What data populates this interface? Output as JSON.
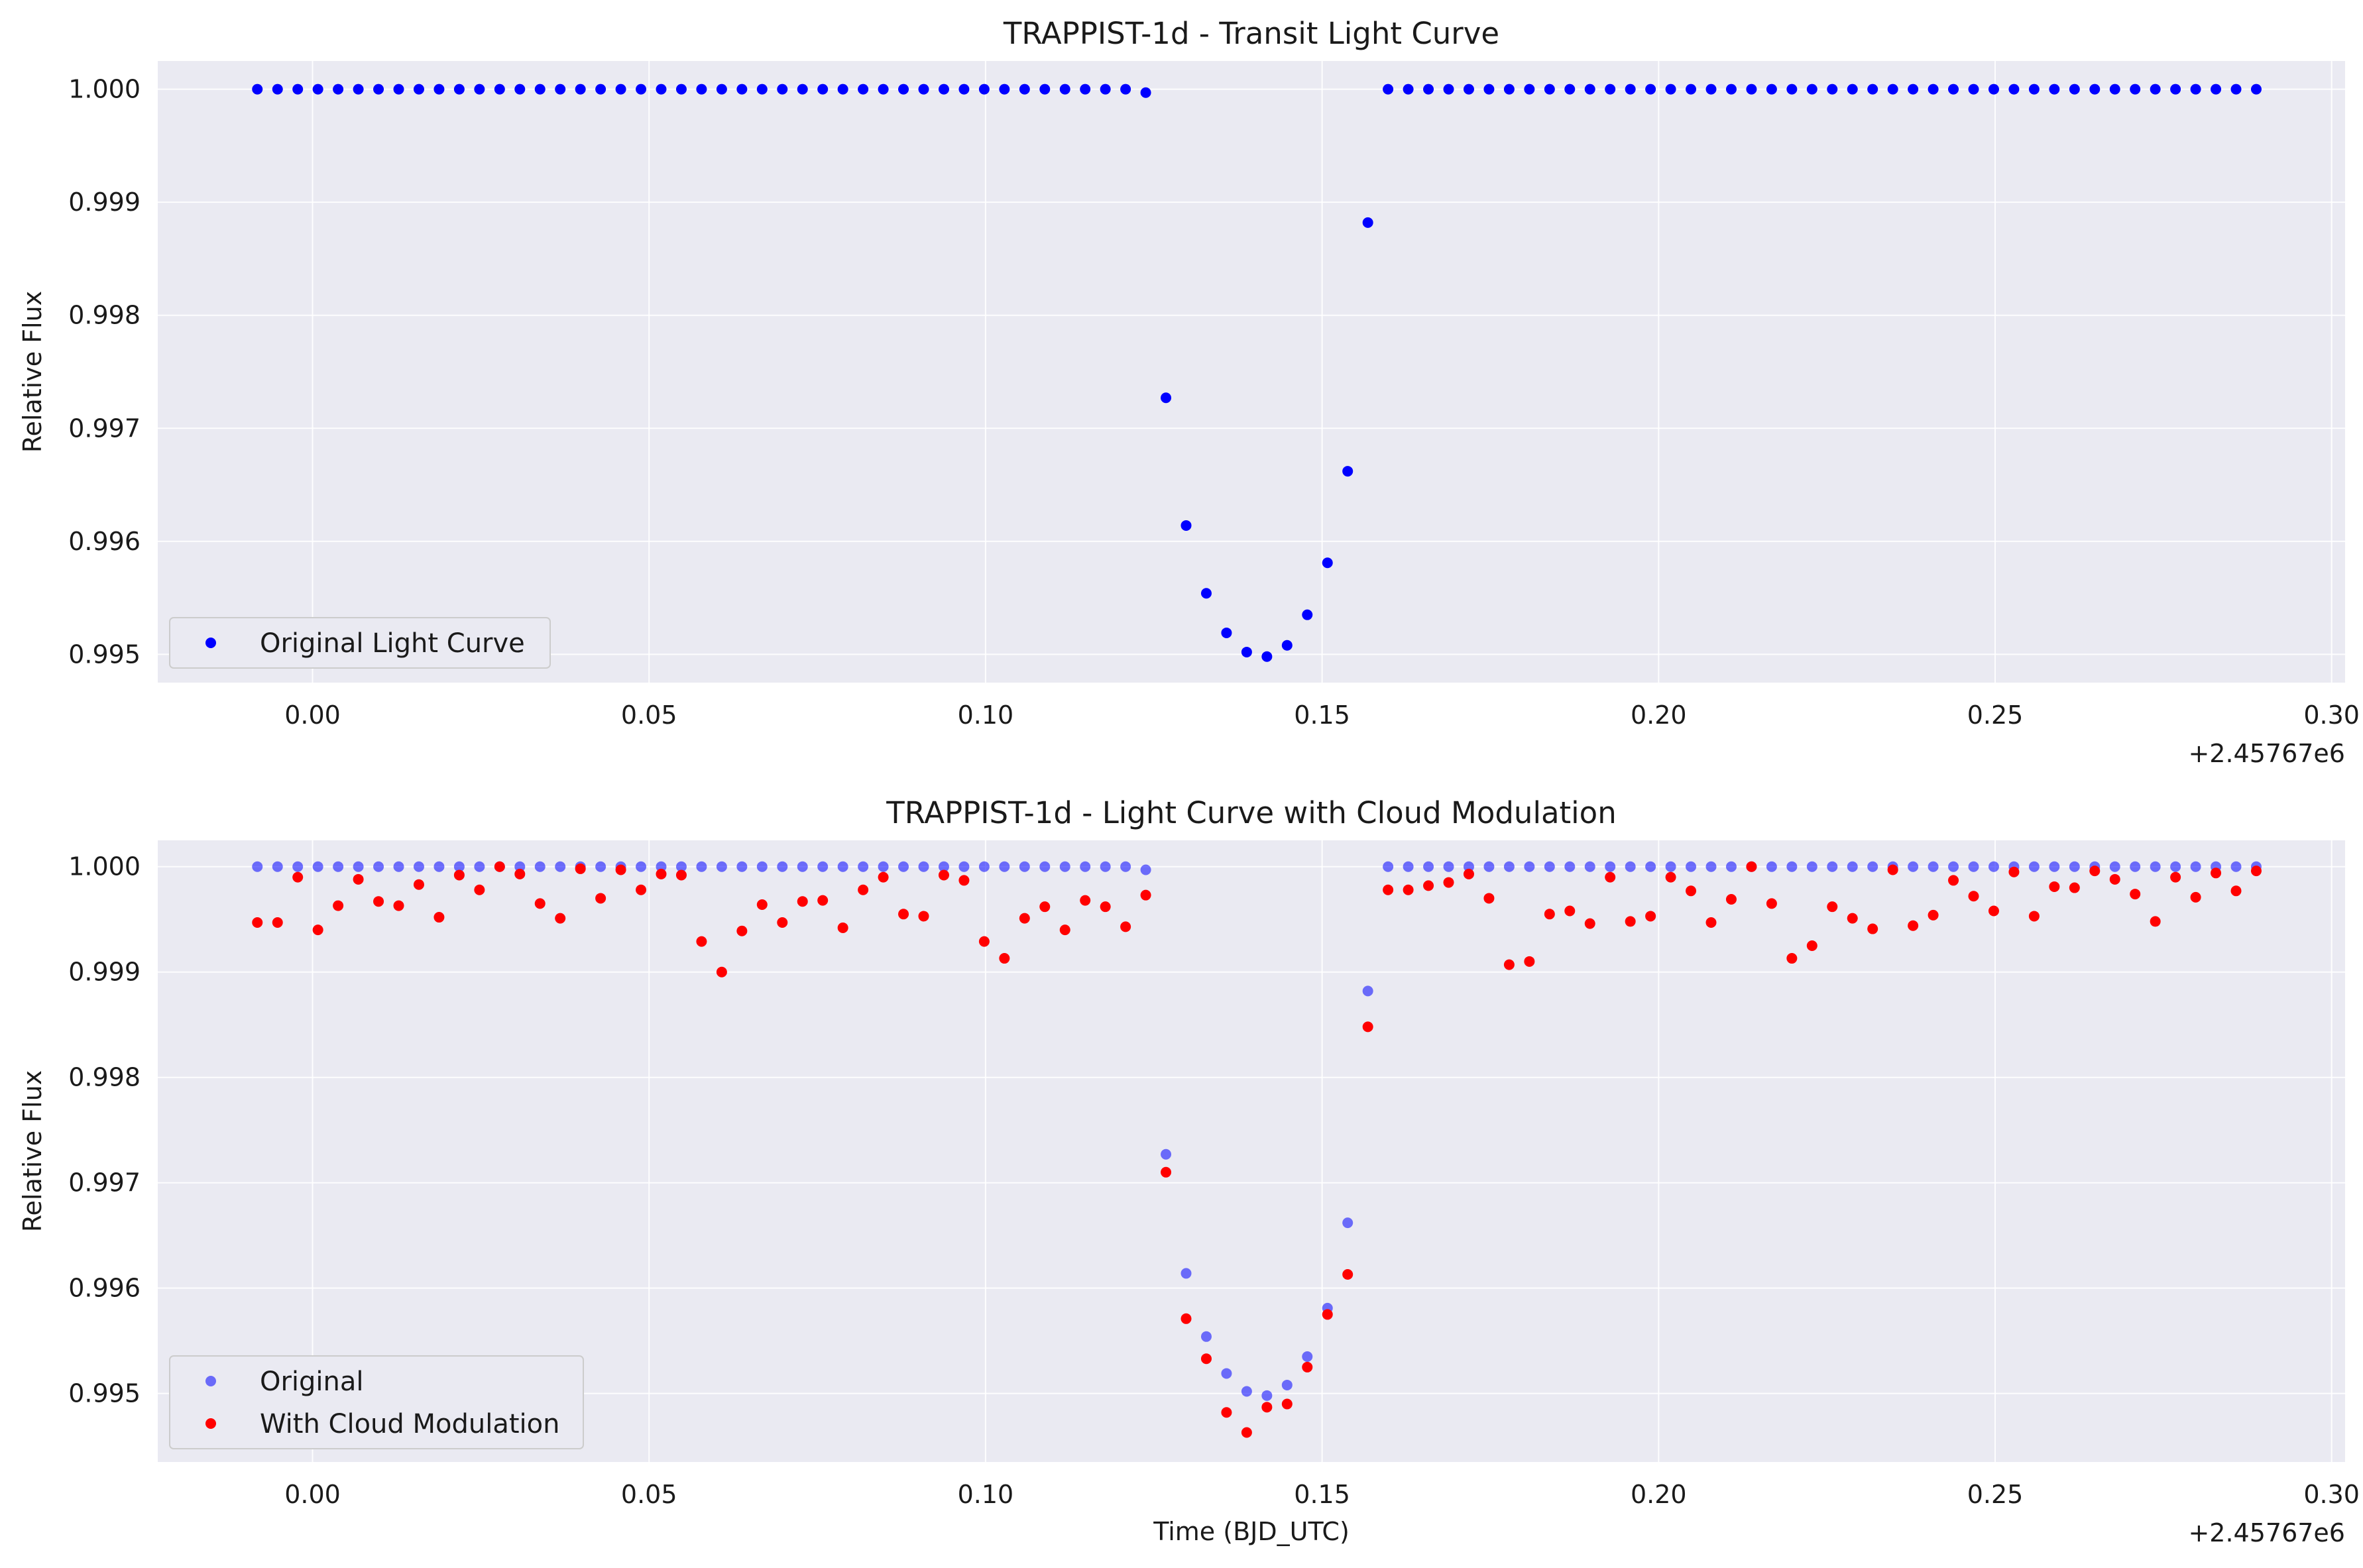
{
  "chart_data": [
    {
      "type": "scatter",
      "title": "TRAPPIST-1d - Transit Light Curve",
      "xlabel": "",
      "ylabel": "Relative Flux",
      "x_offset_label": "+2.45767e6",
      "xlim": [
        -0.023,
        0.302
      ],
      "ylim": [
        0.99475,
        1.00025
      ],
      "xticks": [
        0.0,
        0.05,
        0.1,
        0.15,
        0.2,
        0.25,
        0.3
      ],
      "xtick_labels": [
        "0.00",
        "0.05",
        "0.10",
        "0.15",
        "0.20",
        "0.25",
        "0.30"
      ],
      "yticks": [
        0.995,
        0.996,
        0.997,
        0.998,
        0.999,
        1.0
      ],
      "ytick_labels": [
        "0.995",
        "0.996",
        "0.997",
        "0.998",
        "0.999",
        "1.000"
      ],
      "grid": true,
      "legend_position": "lower-left",
      "x": [
        -0.0082,
        -0.0052,
        -0.0022,
        0.0008,
        0.0038,
        0.0068,
        0.0098,
        0.0128,
        0.0158,
        0.0188,
        0.0218,
        0.0248,
        0.0278,
        0.0308,
        0.0338,
        0.0368,
        0.0398,
        0.0428,
        0.0458,
        0.0488,
        0.0518,
        0.0548,
        0.0578,
        0.0608,
        0.0638,
        0.0668,
        0.0698,
        0.0728,
        0.0758,
        0.0788,
        0.0818,
        0.0848,
        0.0878,
        0.0908,
        0.0938,
        0.0968,
        0.0998,
        0.1028,
        0.1058,
        0.1088,
        0.1118,
        0.1148,
        0.1178,
        0.1208,
        0.1238,
        0.1268,
        0.1298,
        0.1328,
        0.1358,
        0.1388,
        0.1418,
        0.1448,
        0.1478,
        0.1508,
        0.1538,
        0.1568,
        0.1598,
        0.1628,
        0.1658,
        0.1688,
        0.1718,
        0.1748,
        0.1778,
        0.1808,
        0.1838,
        0.1868,
        0.1898,
        0.1928,
        0.1958,
        0.1988,
        0.2018,
        0.2048,
        0.2078,
        0.2108,
        0.2138,
        0.2168,
        0.2198,
        0.2228,
        0.2258,
        0.2288,
        0.2318,
        0.2348,
        0.2378,
        0.2408,
        0.2438,
        0.2468,
        0.2498,
        0.2528,
        0.2558,
        0.2588,
        0.2618,
        0.2648,
        0.2678,
        0.2708,
        0.2738,
        0.2768,
        0.2798,
        0.2828,
        0.2858,
        0.2888
      ],
      "series": [
        {
          "name": "Original Light Curve",
          "color": "#0000ff",
          "y": [
            1.0,
            1.0,
            1.0,
            1.0,
            1.0,
            1.0,
            1.0,
            1.0,
            1.0,
            1.0,
            1.0,
            1.0,
            1.0,
            1.0,
            1.0,
            1.0,
            1.0,
            1.0,
            1.0,
            1.0,
            1.0,
            1.0,
            1.0,
            1.0,
            1.0,
            1.0,
            1.0,
            1.0,
            1.0,
            1.0,
            1.0,
            1.0,
            1.0,
            1.0,
            1.0,
            1.0,
            1.0,
            1.0,
            1.0,
            1.0,
            1.0,
            1.0,
            1.0,
            1.0,
            0.99997,
            0.99727,
            0.99614,
            0.99554,
            0.99519,
            0.99502,
            0.99498,
            0.99508,
            0.99535,
            0.99581,
            0.99662,
            0.99882,
            1.0,
            1.0,
            1.0,
            1.0,
            1.0,
            1.0,
            1.0,
            1.0,
            1.0,
            1.0,
            1.0,
            1.0,
            1.0,
            1.0,
            1.0,
            1.0,
            1.0,
            1.0,
            1.0,
            1.0,
            1.0,
            1.0,
            1.0,
            1.0,
            1.0,
            1.0,
            1.0,
            1.0,
            1.0,
            1.0,
            1.0,
            1.0,
            1.0,
            1.0,
            1.0,
            1.0,
            1.0,
            1.0,
            1.0,
            1.0,
            1.0,
            1.0,
            1.0,
            1.0
          ]
        }
      ]
    },
    {
      "type": "scatter",
      "title": "TRAPPIST-1d - Light Curve with Cloud Modulation",
      "xlabel": "Time (BJD_UTC)",
      "ylabel": "Relative Flux",
      "x_offset_label": "+2.45767e6",
      "xlim": [
        -0.023,
        0.302
      ],
      "ylim": [
        0.99435,
        1.00025
      ],
      "xticks": [
        0.0,
        0.05,
        0.1,
        0.15,
        0.2,
        0.25,
        0.3
      ],
      "xtick_labels": [
        "0.00",
        "0.05",
        "0.10",
        "0.15",
        "0.20",
        "0.25",
        "0.30"
      ],
      "yticks": [
        0.995,
        0.996,
        0.997,
        0.998,
        0.999,
        1.0
      ],
      "ytick_labels": [
        "0.995",
        "0.996",
        "0.997",
        "0.998",
        "0.999",
        "1.000"
      ],
      "grid": true,
      "legend_position": "lower-left",
      "x": [
        -0.0082,
        -0.0052,
        -0.0022,
        0.0008,
        0.0038,
        0.0068,
        0.0098,
        0.0128,
        0.0158,
        0.0188,
        0.0218,
        0.0248,
        0.0278,
        0.0308,
        0.0338,
        0.0368,
        0.0398,
        0.0428,
        0.0458,
        0.0488,
        0.0518,
        0.0548,
        0.0578,
        0.0608,
        0.0638,
        0.0668,
        0.0698,
        0.0728,
        0.0758,
        0.0788,
        0.0818,
        0.0848,
        0.0878,
        0.0908,
        0.0938,
        0.0968,
        0.0998,
        0.1028,
        0.1058,
        0.1088,
        0.1118,
        0.1148,
        0.1178,
        0.1208,
        0.1238,
        0.1268,
        0.1298,
        0.1328,
        0.1358,
        0.1388,
        0.1418,
        0.1448,
        0.1478,
        0.1508,
        0.1538,
        0.1568,
        0.1598,
        0.1628,
        0.1658,
        0.1688,
        0.1718,
        0.1748,
        0.1778,
        0.1808,
        0.1838,
        0.1868,
        0.1898,
        0.1928,
        0.1958,
        0.1988,
        0.2018,
        0.2048,
        0.2078,
        0.2108,
        0.2138,
        0.2168,
        0.2198,
        0.2228,
        0.2258,
        0.2288,
        0.2318,
        0.2348,
        0.2378,
        0.2408,
        0.2438,
        0.2468,
        0.2498,
        0.2528,
        0.2558,
        0.2588,
        0.2618,
        0.2648,
        0.2678,
        0.2708,
        0.2738,
        0.2768,
        0.2798,
        0.2828,
        0.2858,
        0.2888
      ],
      "series": [
        {
          "name": "Original",
          "color": "#0000ff",
          "alpha": 0.55,
          "y": [
            1.0,
            1.0,
            1.0,
            1.0,
            1.0,
            1.0,
            1.0,
            1.0,
            1.0,
            1.0,
            1.0,
            1.0,
            1.0,
            1.0,
            1.0,
            1.0,
            1.0,
            1.0,
            1.0,
            1.0,
            1.0,
            1.0,
            1.0,
            1.0,
            1.0,
            1.0,
            1.0,
            1.0,
            1.0,
            1.0,
            1.0,
            1.0,
            1.0,
            1.0,
            1.0,
            1.0,
            1.0,
            1.0,
            1.0,
            1.0,
            1.0,
            1.0,
            1.0,
            1.0,
            0.99997,
            0.99727,
            0.99614,
            0.99554,
            0.99519,
            0.99502,
            0.99498,
            0.99508,
            0.99535,
            0.99581,
            0.99662,
            0.99882,
            1.0,
            1.0,
            1.0,
            1.0,
            1.0,
            1.0,
            1.0,
            1.0,
            1.0,
            1.0,
            1.0,
            1.0,
            1.0,
            1.0,
            1.0,
            1.0,
            1.0,
            1.0,
            1.0,
            1.0,
            1.0,
            1.0,
            1.0,
            1.0,
            1.0,
            1.0,
            1.0,
            1.0,
            1.0,
            1.0,
            1.0,
            1.0,
            1.0,
            1.0,
            1.0,
            1.0,
            1.0,
            1.0,
            1.0,
            1.0,
            1.0,
            1.0,
            1.0,
            1.0
          ]
        },
        {
          "name": "With Cloud Modulation",
          "color": "#ff0000",
          "y": [
            0.99947,
            0.99947,
            0.9999,
            0.9994,
            0.99963,
            0.99988,
            0.99967,
            0.99963,
            0.99983,
            0.99952,
            0.99992,
            0.99978,
            1.0,
            0.99993,
            0.99965,
            0.99951,
            0.99998,
            0.9997,
            0.99997,
            0.99978,
            0.99993,
            0.99992,
            0.99929,
            0.999,
            0.99939,
            0.99964,
            0.99947,
            0.99967,
            0.99968,
            0.99942,
            0.99978,
            0.9999,
            0.99955,
            0.99953,
            0.99992,
            0.99987,
            0.99929,
            0.99913,
            0.99951,
            0.99962,
            0.9994,
            0.99968,
            0.99962,
            0.99943,
            0.99973,
            0.9971,
            0.99571,
            0.99533,
            0.99482,
            0.99463,
            0.99487,
            0.9949,
            0.99525,
            0.99575,
            0.99613,
            0.99848,
            0.99978,
            0.99978,
            0.99982,
            0.99985,
            0.99993,
            0.9997,
            0.99907,
            0.9991,
            0.99955,
            0.99958,
            0.99946,
            0.9999,
            0.99948,
            0.99953,
            0.9999,
            0.99977,
            0.99947,
            0.99969,
            1.0,
            0.99965,
            0.99913,
            0.99925,
            0.99962,
            0.99951,
            0.99941,
            0.99997,
            0.99944,
            0.99954,
            0.99987,
            0.99972,
            0.99958,
            0.99995,
            0.99953,
            0.99981,
            0.9998,
            0.99996,
            0.99988,
            0.99974,
            0.99948,
            0.9999,
            0.99971,
            0.99994,
            0.99977,
            0.99996
          ]
        }
      ]
    }
  ]
}
